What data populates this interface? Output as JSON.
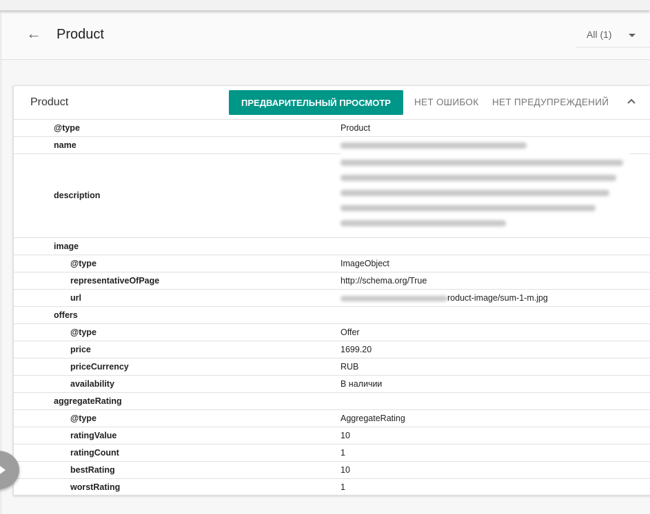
{
  "header": {
    "title": "Product",
    "filter": "All (1)"
  },
  "card": {
    "title": "Product",
    "preview_button": "ПРЕДВАРИТЕЛЬНЫЙ ПРОСМОТР",
    "errors": "НЕТ ОШИБОК",
    "warnings": "НЕТ ПРЕДУПРЕЖДЕНИЙ"
  },
  "rows": [
    {
      "key": "@type",
      "value": "Product"
    },
    {
      "key": "name",
      "value": ""
    },
    {
      "key": "description",
      "value": ""
    },
    {
      "key": "image",
      "value": ""
    },
    {
      "key": "@type",
      "value": "ImageObject"
    },
    {
      "key": "representativeOfPage",
      "value": "http://schema.org/True"
    },
    {
      "key": "url",
      "value": "roduct-image/sum-1-m.jpg"
    },
    {
      "key": "offers",
      "value": ""
    },
    {
      "key": "@type",
      "value": "Offer"
    },
    {
      "key": "price",
      "value": "1699.20"
    },
    {
      "key": "priceCurrency",
      "value": "RUB"
    },
    {
      "key": "availability",
      "value": "В наличии"
    },
    {
      "key": "aggregateRating",
      "value": ""
    },
    {
      "key": "@type",
      "value": "AggregateRating"
    },
    {
      "key": "ratingValue",
      "value": "10"
    },
    {
      "key": "ratingCount",
      "value": "1"
    },
    {
      "key": "bestRating",
      "value": "10"
    },
    {
      "key": "worstRating",
      "value": "1"
    }
  ],
  "colors": {
    "accent": "#009688"
  }
}
